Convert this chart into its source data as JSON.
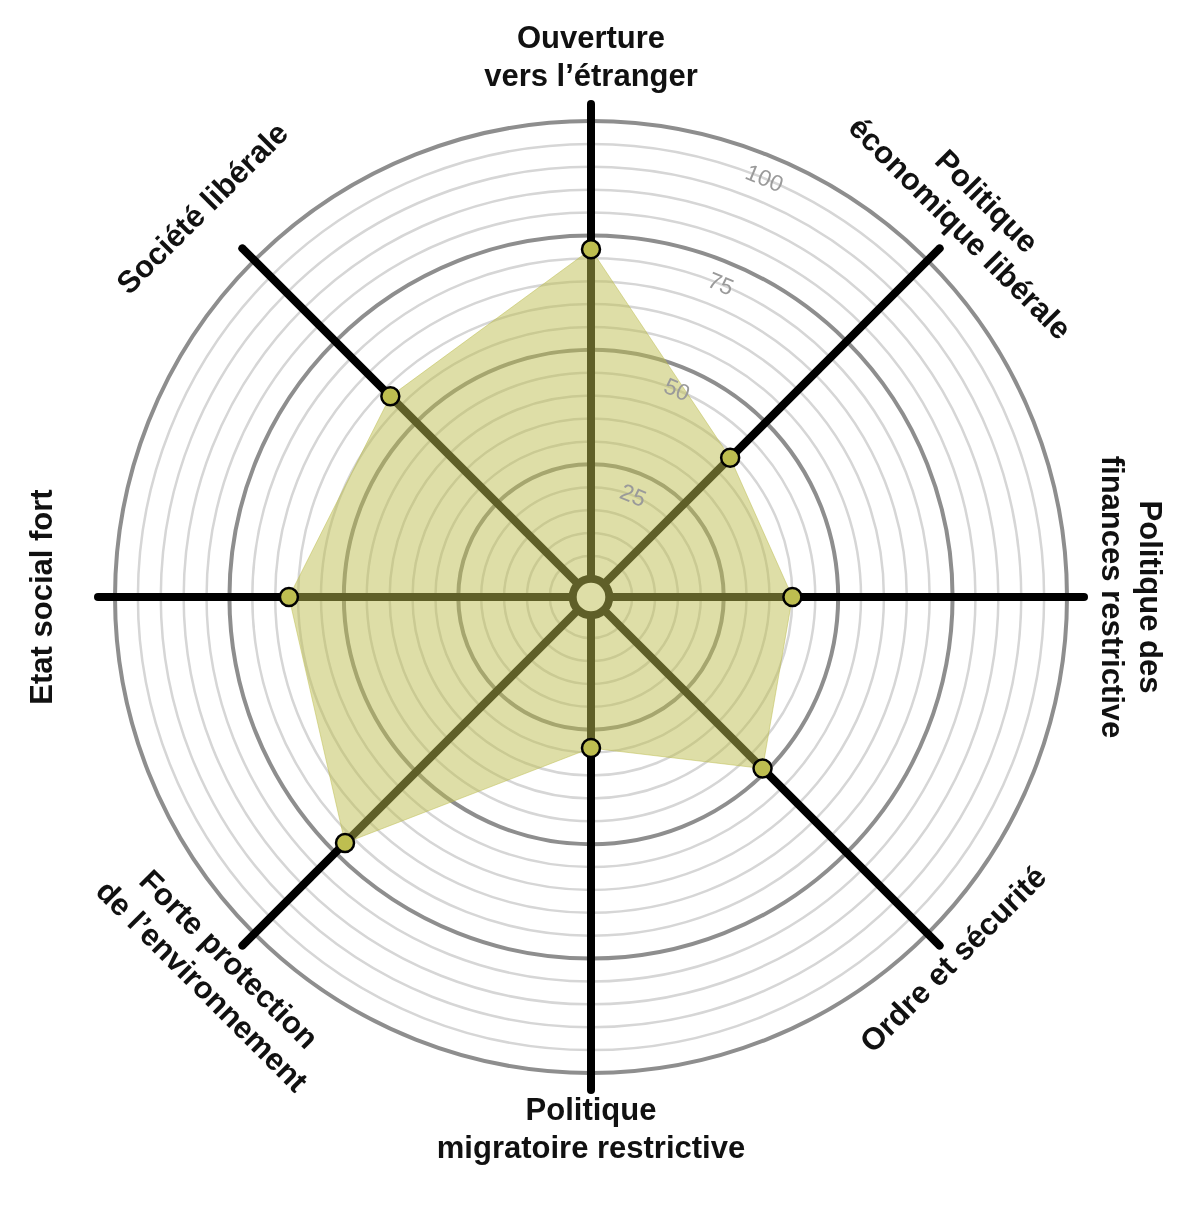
{
  "chart_data": {
    "type": "radar",
    "categories": [
      "Ouverture\nvers l’étranger",
      "Politique\néconomique libérale",
      "Politique des\nfinances restrictive",
      "Ordre et sécurité",
      "Politique\nmigratoire restrictive",
      "Forte protection\nde l’environnement",
      "Etat social fort",
      "Société libérale"
    ],
    "series": [
      {
        "color": "#bebe50",
        "values": [
          72,
          39,
          40,
          49,
          29,
          72,
          62,
          58
        ]
      }
    ],
    "ylim": [
      -4,
      100
    ],
    "yticks": [
      25,
      50,
      75,
      100
    ],
    "grid": true,
    "marker": "circle"
  }
}
